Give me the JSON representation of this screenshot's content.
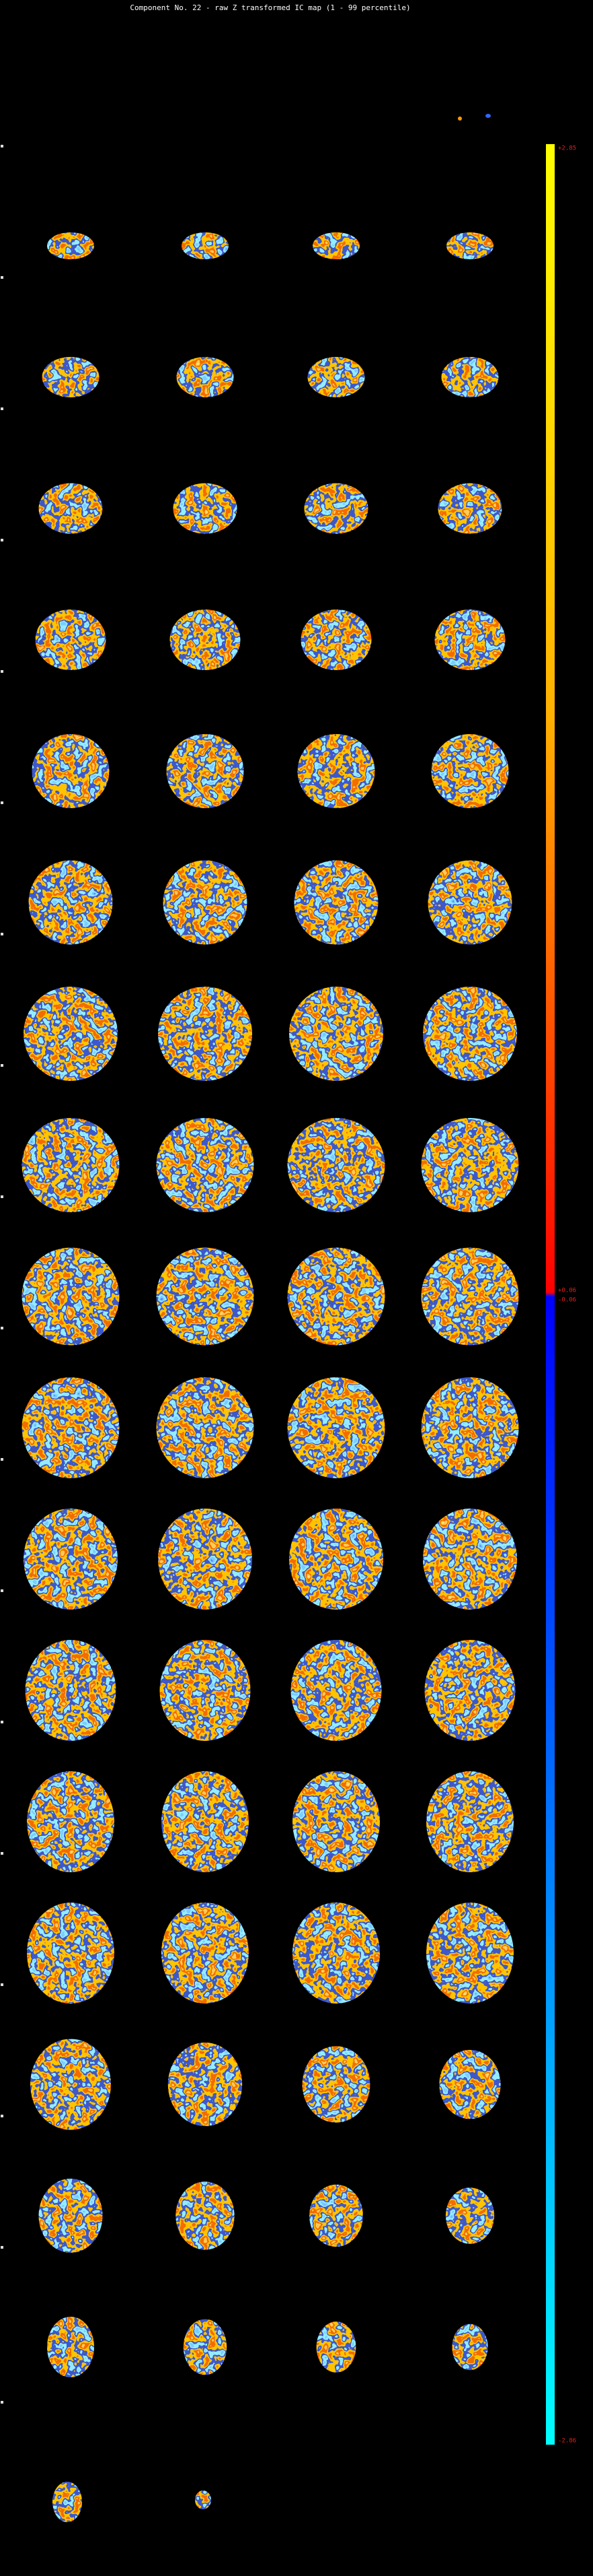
{
  "title": "Component No. 22 - raw Z transformed IC map (1 - 99 percentile)",
  "colorbar": {
    "top_label": "+2.85",
    "upper_mid_label": "+0.06",
    "lower_mid_label": "-0.06",
    "bottom_label": "-2.86"
  }
}
